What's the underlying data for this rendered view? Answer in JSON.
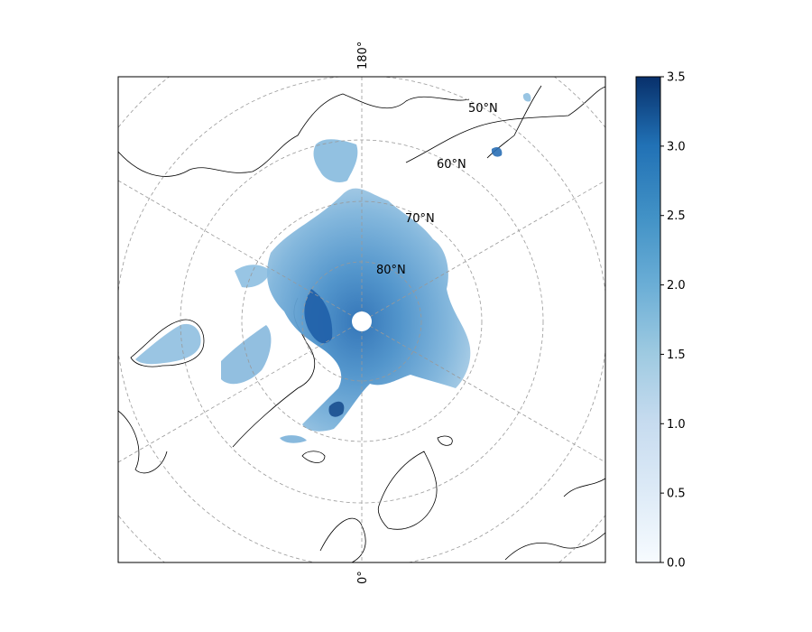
{
  "map": {
    "projection": "North Polar Stereographic",
    "top_meridian_label": "180°",
    "bottom_meridian_label": "0°",
    "latitude_labels": [
      "50°N",
      "60°N",
      "70°N",
      "80°N"
    ],
    "colormap": "Blues",
    "colors": {
      "land_outline": "#000000",
      "gridline": "#999999",
      "pole_hole": "#ffffff"
    }
  },
  "colorbar": {
    "min": 0.0,
    "max": 3.5,
    "ticks": [
      "0.0",
      "0.5",
      "1.0",
      "1.5",
      "2.0",
      "2.5",
      "3.0",
      "3.5"
    ],
    "color_low": "#f7fbff",
    "color_high": "#08306b"
  },
  "chart_data": {
    "type": "heatmap",
    "title": "",
    "value_range": [
      0.0,
      3.5
    ],
    "description_field": "sea ice values on polar stereographic map",
    "grid": true
  }
}
